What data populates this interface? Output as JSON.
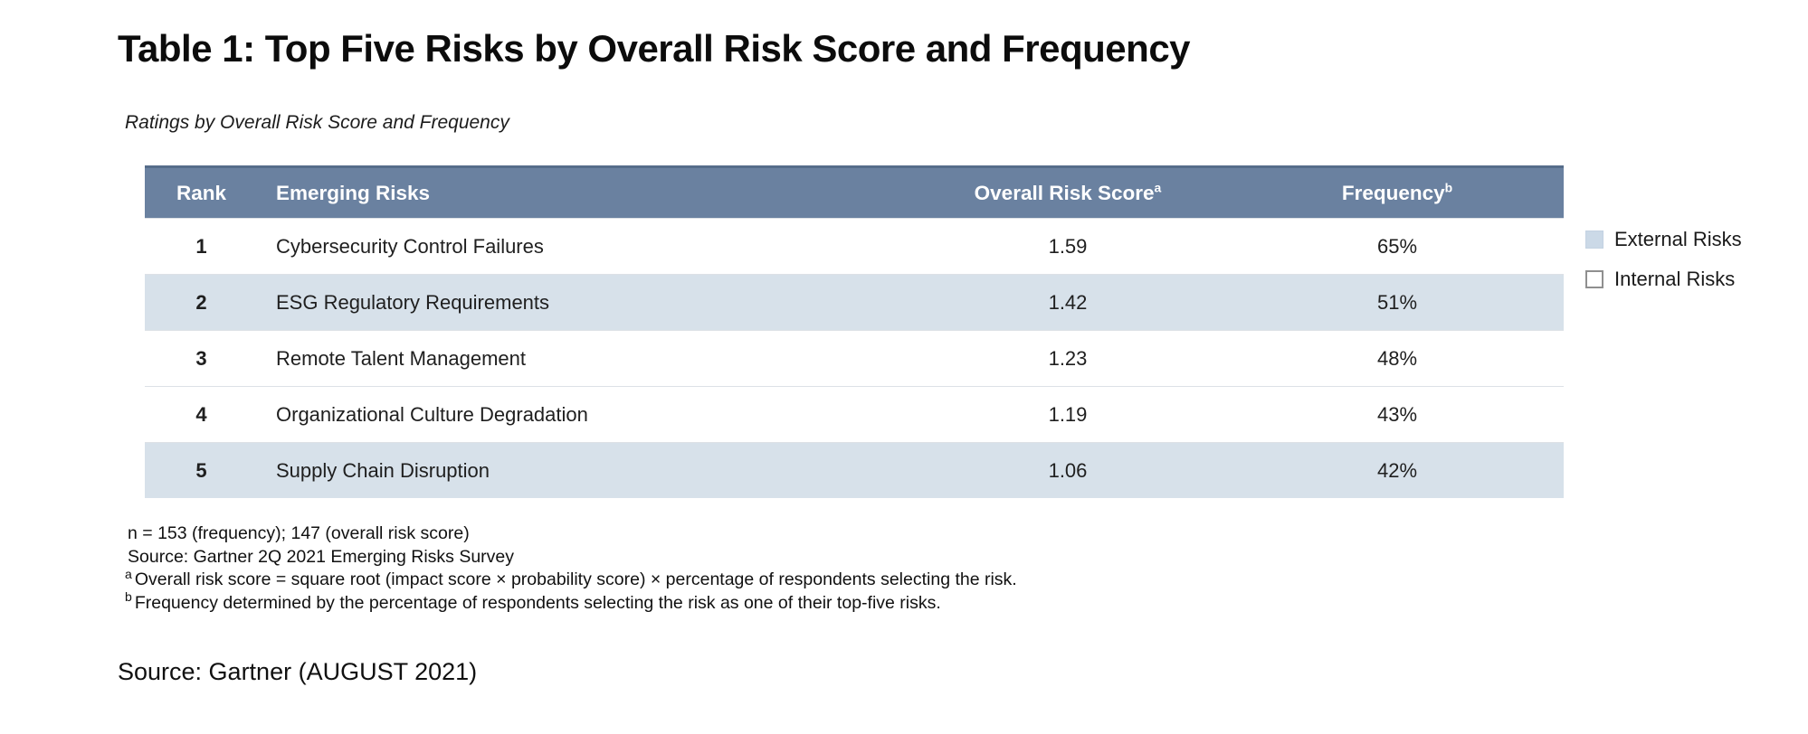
{
  "page": {
    "title": "Table 1: Top Five Risks by Overall Risk Score and Frequency",
    "subtitle": "Ratings by Overall Risk Score and Frequency",
    "source_line": "Source: Gartner (AUGUST 2021)"
  },
  "table": {
    "columns": {
      "rank": "Rank",
      "risk": "Emerging Risks",
      "score": {
        "text": "Overall Risk Score",
        "sup": "a"
      },
      "frequency": {
        "text": "Frequency",
        "sup": "b"
      }
    },
    "rows": [
      {
        "rank": "1",
        "risk": "Cybersecurity Control Failures",
        "score": "1.59",
        "frequency": "65%",
        "type": "internal"
      },
      {
        "rank": "2",
        "risk": "ESG Regulatory Requirements",
        "score": "1.42",
        "frequency": "51%",
        "type": "external"
      },
      {
        "rank": "3",
        "risk": "Remote Talent Management",
        "score": "1.23",
        "frequency": "48%",
        "type": "internal"
      },
      {
        "rank": "4",
        "risk": "Organizational Culture Degradation",
        "score": "1.19",
        "frequency": "43%",
        "type": "internal"
      },
      {
        "rank": "5",
        "risk": "Supply Chain Disruption",
        "score": "1.06",
        "frequency": "42%",
        "type": "external"
      }
    ]
  },
  "legend": {
    "items": [
      {
        "label": "External Risks",
        "swatch": "filled",
        "color": "#cbd9e7"
      },
      {
        "label": "Internal Risks",
        "swatch": "outline",
        "color": "#ffffff"
      }
    ]
  },
  "footnotes": {
    "lines": [
      {
        "sup": "",
        "text": "n = 153 (frequency); 147 (overall risk score)"
      },
      {
        "sup": "",
        "text": "Source: Gartner 2Q 2021 Emerging Risks Survey"
      },
      {
        "sup": "a",
        "text": "Overall risk score = square root (impact score × probability score) × percentage of respondents selecting the risk."
      },
      {
        "sup": "b",
        "text": "Frequency determined by the percentage of respondents selecting the risk as one of their top-five risks."
      }
    ]
  },
  "colors": {
    "header_bg": "#6a81a0",
    "header_top_border": "#566d8a",
    "header_text": "#ffffff",
    "external_row_bg": "#d7e1ea",
    "internal_row_bg": "#ffffff",
    "row_divider": "#dde1e6"
  },
  "chart_data": {
    "type": "table",
    "title": "Table 1: Top Five Risks by Overall Risk Score and Frequency",
    "subtitle": "Ratings by Overall Risk Score and Frequency",
    "columns": [
      "Rank",
      "Emerging Risks",
      "Overall Risk Score",
      "Frequency"
    ],
    "rows": [
      [
        1,
        "Cybersecurity Control Failures",
        1.59,
        "65%"
      ],
      [
        2,
        "ESG Regulatory Requirements",
        1.42,
        "51%"
      ],
      [
        3,
        "Remote Talent Management",
        1.23,
        "48%"
      ],
      [
        4,
        "Organizational Culture Degradation",
        1.19,
        "43%"
      ],
      [
        5,
        "Supply Chain Disruption",
        1.06,
        "42%"
      ]
    ],
    "row_categories": [
      "Internal Risks",
      "External Risks",
      "Internal Risks",
      "Internal Risks",
      "External Risks"
    ],
    "legend_entries": [
      "External Risks",
      "Internal Risks"
    ],
    "legend_position": "right",
    "notes": [
      "n = 153 (frequency); 147 (overall risk score)",
      "Source: Gartner 2Q 2021 Emerging Risks Survey",
      "a Overall risk score = square root (impact score × probability score) × percentage of respondents selecting the risk.",
      "b Frequency determined by the percentage of respondents selecting the risk as one of their top-five risks."
    ],
    "source": "Source: Gartner (AUGUST 2021)"
  }
}
